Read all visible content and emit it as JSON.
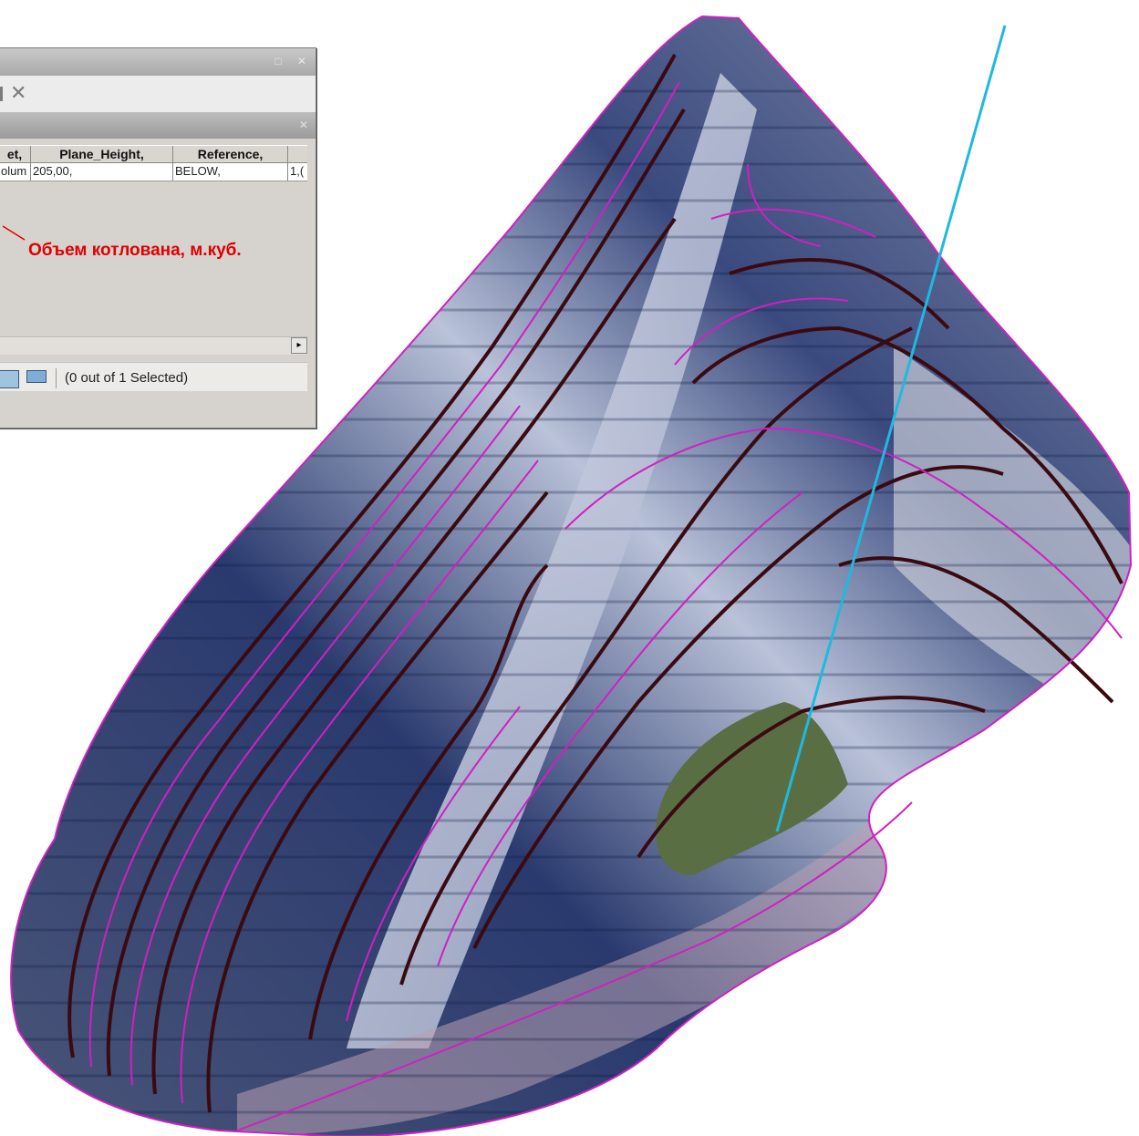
{
  "attribute_table": {
    "columns": [
      "et,",
      "Plane_Height,",
      "Reference,",
      ""
    ],
    "row": [
      "olum",
      "205,00,",
      "BELOW,",
      "1,("
    ],
    "annotation": "Объем котлована, м.куб.",
    "selection_status": "(0 out of 1 Selected)",
    "close_glyph": "✕",
    "scroll_right_glyph": "▸"
  },
  "map": {
    "surface_colors": {
      "terrain_dark": "#2a3a6a",
      "terrain_light": "#c8cfe0",
      "contour_major": "#3a0a10",
      "contour_minor": "#d020c0",
      "water": "#5a6e44",
      "profile_line": "#20b8e0"
    }
  }
}
